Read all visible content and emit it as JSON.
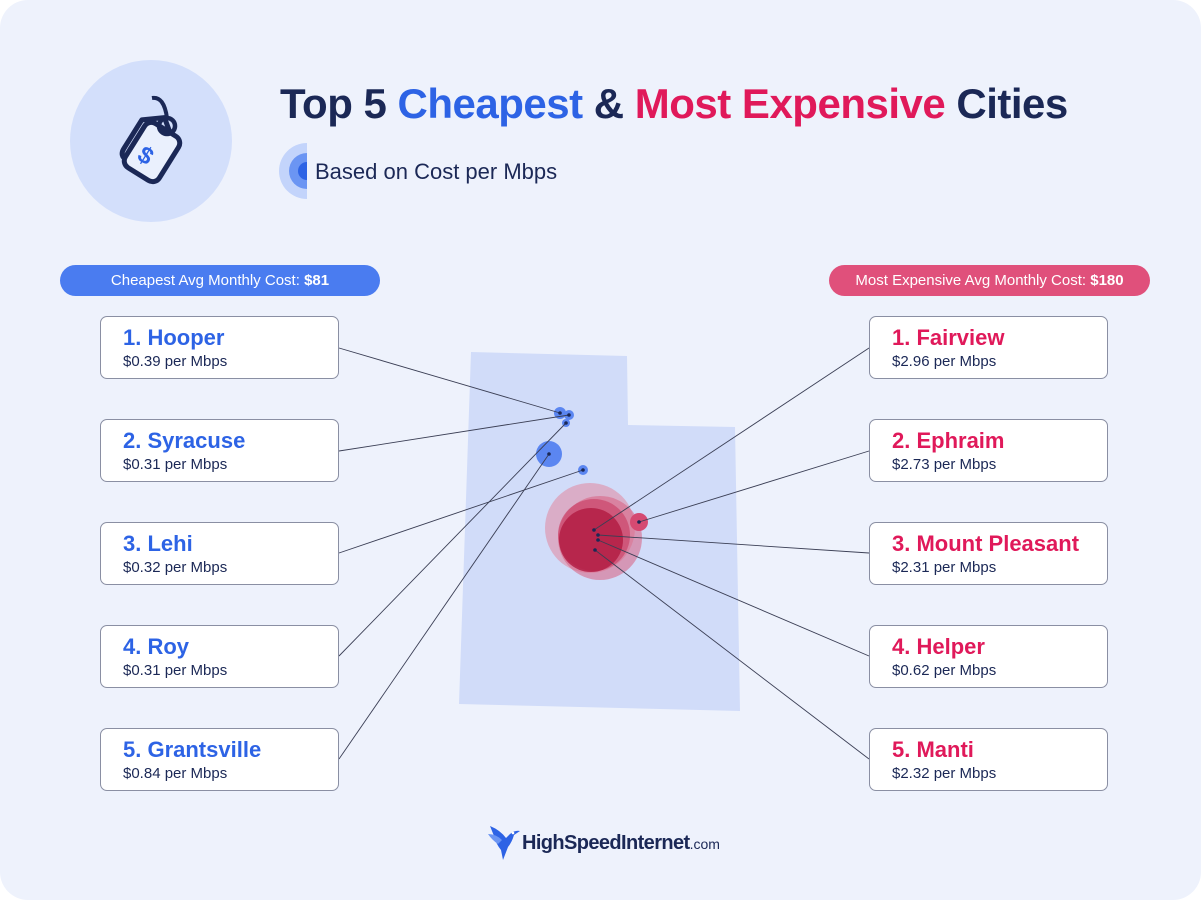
{
  "title": {
    "part1": "Top 5 ",
    "cheapest": "Cheapest",
    "amp": " & ",
    "expensive": "Most Expensive",
    "part2": " Cities"
  },
  "subtitle": "Based on Cost per Mbps",
  "icons": {
    "header": "price-tag-icon",
    "subtitle": "concentric-circles-icon",
    "footer": "hummingbird-logo"
  },
  "colors": {
    "cheap": "#2d63e5",
    "expensive": "#e0195a",
    "state": "#d1dcf9",
    "navy": "#1b2856"
  },
  "cheapest_label": "Cheapest Avg Monthly Cost: ",
  "cheapest_value": "$81",
  "expensive_label": "Most Expensive Avg Monthly Cost: ",
  "expensive_value": "$180",
  "cheapest": [
    {
      "name": "1. Hooper",
      "cost": "$0.39 per Mbps"
    },
    {
      "name": "2. Syracuse",
      "cost": "$0.31 per Mbps"
    },
    {
      "name": "3. Lehi",
      "cost": "$0.32 per Mbps"
    },
    {
      "name": "4. Roy",
      "cost": "$0.31 per Mbps"
    },
    {
      "name": "5. Grantsville",
      "cost": "$0.84 per Mbps"
    }
  ],
  "expensive": [
    {
      "name": "1. Fairview",
      "cost": "$2.96 per Mbps"
    },
    {
      "name": "2. Ephraim",
      "cost": "$2.73 per Mbps"
    },
    {
      "name": "3. Mount Pleasant",
      "cost": "$2.31 per Mbps"
    },
    {
      "name": "4. Helper",
      "cost": "$0.62 per Mbps"
    },
    {
      "name": "5. Manti",
      "cost": "$2.32 per Mbps"
    }
  ],
  "footer": {
    "brand": "HighSpeedInternet",
    "suffix": ".com"
  }
}
